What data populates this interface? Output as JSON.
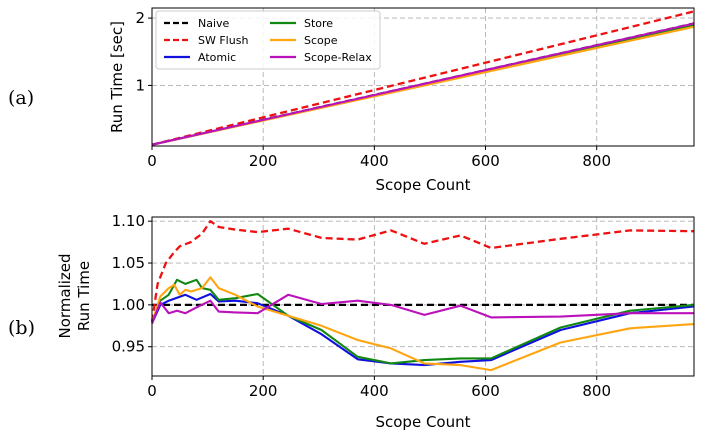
{
  "chart_data": [
    {
      "type": "line",
      "panel_label": "(a)",
      "xlabel": "Scope Count",
      "ylabel": "Run Time [sec]",
      "xlim": [
        0,
        975
      ],
      "ylim": [
        0.1,
        2.15
      ],
      "xticks": [
        0,
        200,
        400,
        600,
        800
      ],
      "xtick_labels": [
        "0",
        "200",
        "400",
        "600",
        "800"
      ],
      "yticks": [
        1,
        2
      ],
      "ytick_labels": [
        "1",
        "2"
      ],
      "grid": true,
      "legend_position": "top-left",
      "legend_columns": 2,
      "series": [
        {
          "name": "Naive",
          "color": "#000000",
          "dash": "dashed",
          "x": [
            0,
            975
          ],
          "y": [
            0.12,
            1.92
          ]
        },
        {
          "name": "SW Flush",
          "color": "#ee1111",
          "dash": "dashed",
          "x": [
            0,
            975
          ],
          "y": [
            0.12,
            2.1
          ]
        },
        {
          "name": "Atomic",
          "color": "#1111dd",
          "dash": "solid",
          "x": [
            0,
            975
          ],
          "y": [
            0.12,
            1.9
          ]
        },
        {
          "name": "Store",
          "color": "#118811",
          "dash": "solid",
          "x": [
            0,
            975
          ],
          "y": [
            0.12,
            1.9
          ]
        },
        {
          "name": "Scope",
          "color": "#ffa511",
          "dash": "solid",
          "x": [
            0,
            975
          ],
          "y": [
            0.12,
            1.87
          ]
        },
        {
          "name": "Scope-Relax",
          "color": "#bb11bb",
          "dash": "solid",
          "x": [
            0,
            975
          ],
          "y": [
            0.12,
            1.92
          ]
        }
      ]
    },
    {
      "type": "line",
      "panel_label": "(b)",
      "xlabel": "Scope Count",
      "ylabel": "Normalized Run Time",
      "ylabel_lines": [
        "Normalized",
        "Run Time"
      ],
      "xlim": [
        0,
        975
      ],
      "ylim": [
        0.915,
        1.105
      ],
      "xticks": [
        0,
        200,
        400,
        600,
        800
      ],
      "xtick_labels": [
        "0",
        "200",
        "400",
        "600",
        "800"
      ],
      "yticks": [
        0.95,
        1.0,
        1.05,
        1.1
      ],
      "ytick_labels": [
        "0.95",
        "1.00",
        "1.05",
        "1.10"
      ],
      "grid": true,
      "series": [
        {
          "name": "Naive",
          "color": "#000000",
          "dash": "dashed",
          "x": [
            0,
            975
          ],
          "y": [
            1.0,
            1.0
          ]
        },
        {
          "name": "SW Flush",
          "color": "#ee1111",
          "dash": "dashed",
          "x": [
            0,
            10,
            25,
            40,
            50,
            70,
            90,
            105,
            120,
            150,
            190,
            245,
            305,
            370,
            430,
            490,
            555,
            610,
            735,
            860,
            975
          ],
          "y": [
            0.98,
            1.025,
            1.05,
            1.063,
            1.07,
            1.075,
            1.085,
            1.1,
            1.093,
            1.09,
            1.087,
            1.091,
            1.08,
            1.078,
            1.089,
            1.073,
            1.083,
            1.068,
            1.079,
            1.089,
            1.088
          ]
        },
        {
          "name": "Atomic",
          "color": "#1111dd",
          "dash": "solid",
          "x": [
            0,
            15,
            30,
            60,
            80,
            105,
            120,
            150,
            190,
            245,
            305,
            370,
            430,
            490,
            555,
            610,
            735,
            860,
            975
          ],
          "y": [
            0.978,
            1.0,
            1.005,
            1.012,
            1.006,
            1.013,
            1.004,
            1.005,
            1.002,
            0.987,
            0.965,
            0.935,
            0.93,
            0.928,
            0.932,
            0.934,
            0.97,
            0.99,
            0.998
          ]
        },
        {
          "name": "Store",
          "color": "#118811",
          "dash": "solid",
          "x": [
            0,
            15,
            30,
            45,
            60,
            80,
            90,
            105,
            120,
            150,
            190,
            245,
            305,
            370,
            430,
            490,
            555,
            610,
            735,
            860,
            975
          ],
          "y": [
            0.978,
            1.005,
            1.012,
            1.03,
            1.025,
            1.03,
            1.02,
            1.018,
            1.006,
            1.008,
            1.013,
            0.987,
            0.97,
            0.938,
            0.93,
            0.934,
            0.936,
            0.936,
            0.973,
            0.993,
            1.0
          ]
        },
        {
          "name": "Scope",
          "color": "#ffa511",
          "dash": "solid",
          "x": [
            0,
            15,
            30,
            40,
            50,
            60,
            70,
            90,
            105,
            120,
            150,
            190,
            245,
            305,
            370,
            430,
            490,
            555,
            610,
            735,
            860,
            975
          ],
          "y": [
            0.978,
            1.01,
            1.02,
            1.024,
            1.012,
            1.018,
            1.016,
            1.02,
            1.033,
            1.02,
            1.012,
            0.998,
            0.987,
            0.975,
            0.958,
            0.948,
            0.93,
            0.928,
            0.922,
            0.955,
            0.972,
            0.977
          ]
        },
        {
          "name": "Scope-Relax",
          "color": "#bb11bb",
          "dash": "solid",
          "x": [
            0,
            15,
            30,
            45,
            60,
            80,
            105,
            120,
            150,
            190,
            245,
            305,
            370,
            430,
            490,
            555,
            610,
            735,
            860,
            975
          ],
          "y": [
            0.978,
            1.003,
            0.99,
            0.993,
            0.99,
            0.997,
            1.005,
            0.992,
            0.991,
            0.99,
            1.012,
            1.001,
            1.005,
            1.0,
            0.988,
            0.999,
            0.985,
            0.986,
            0.99,
            0.99
          ]
        }
      ]
    }
  ]
}
